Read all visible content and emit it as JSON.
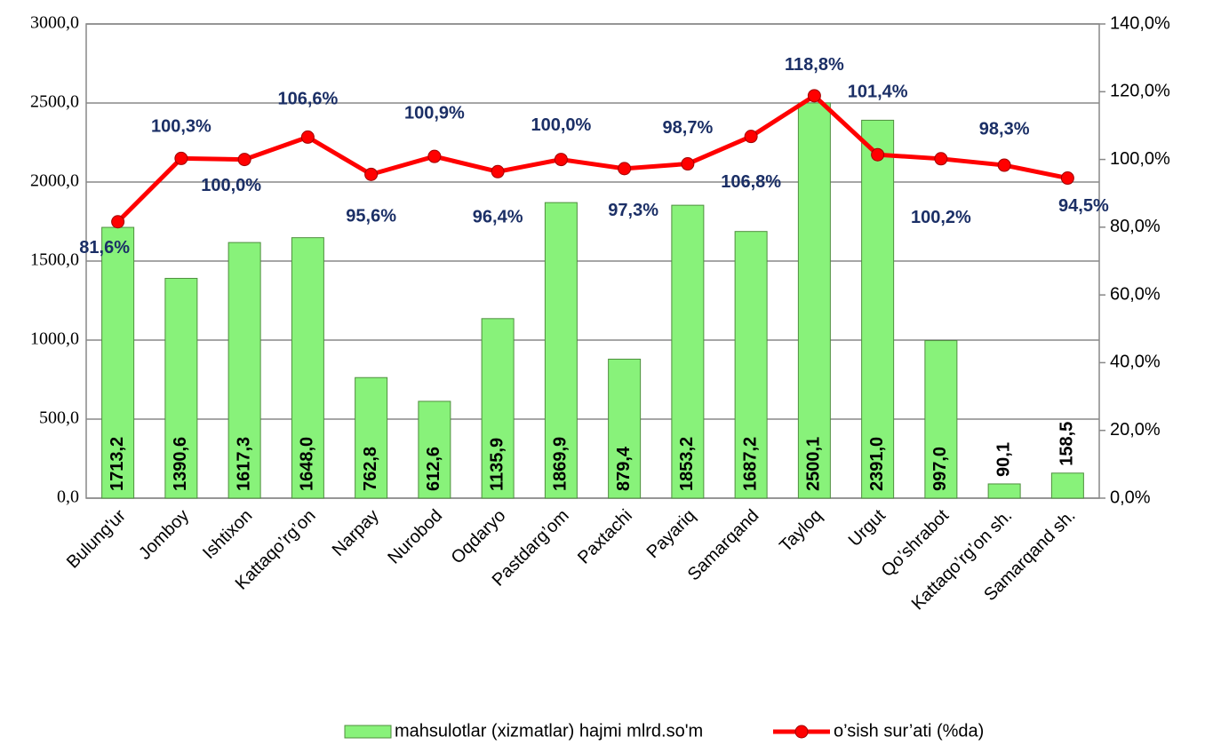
{
  "chart_data": {
    "type": "bar_line",
    "categories": [
      "Bulung'ur",
      "Jomboy",
      "Ishtixon",
      "Kattaqo’rg’on",
      "Narpay",
      "Nurobod",
      "Oqdaryo",
      "Pastdarg’om",
      "Paxtachi",
      "Payariq",
      "Samarqand",
      "Tayloq",
      "Urgut",
      "Qo’shrabot",
      "Kattaqo’rg’on sh.",
      "Samarqand sh."
    ],
    "series": [
      {
        "name": "mahsulotlar (xizmatlar) hajmi mlrd.so'm",
        "type": "bar",
        "color": "#88f27a",
        "values": [
          1713.2,
          1390.6,
          1617.3,
          1648.0,
          762.8,
          612.6,
          1135.9,
          1869.9,
          879.4,
          1853.2,
          1687.2,
          2500.1,
          2391.0,
          997.0,
          90.1,
          158.5
        ],
        "value_labels": [
          "1713,2",
          "1390,6",
          "1617,3",
          "1648,0",
          "762,8",
          "612,6",
          "1135,9",
          "1869,9",
          "879,4",
          "1853,2",
          "1687,2",
          "2500,1",
          "2391,0",
          "997,0",
          "90,1",
          "158,5"
        ]
      },
      {
        "name": "o’sish sur’ati (%da)",
        "type": "line",
        "axis": "y2",
        "color": "#ff0000",
        "values": [
          81.6,
          100.3,
          100.0,
          106.6,
          95.6,
          100.9,
          96.4,
          100.0,
          97.3,
          98.7,
          106.8,
          118.8,
          101.4,
          100.2,
          98.3,
          94.5
        ],
        "value_labels": [
          "81,6%",
          "100,3%",
          "100,0%",
          "106,6%",
          "95,6%",
          "100,9%",
          "96,4%",
          "100,0%",
          "97,3%",
          "98,7%",
          "106,8%",
          "118,8%",
          "101,4%",
          "100,2%",
          "98,3%",
          "94,5%"
        ]
      }
    ],
    "ylim": [
      0,
      3000
    ],
    "yticks": [
      {
        "value": 0,
        "label": "0,0"
      },
      {
        "value": 500,
        "label": "500,0"
      },
      {
        "value": 1000,
        "label": "1000,0"
      },
      {
        "value": 1500,
        "label": "1500,0"
      },
      {
        "value": 2000,
        "label": "2000,0"
      },
      {
        "value": 2500,
        "label": "2500,0"
      },
      {
        "value": 3000,
        "label": "3000,0"
      }
    ],
    "y2lim": [
      0,
      140
    ],
    "y2ticks": [
      {
        "value": 0,
        "label": "0,0%"
      },
      {
        "value": 20,
        "label": "20,0%"
      },
      {
        "value": 40,
        "label": "40,0%"
      },
      {
        "value": 60,
        "label": "60,0%"
      },
      {
        "value": 80,
        "label": "80,0%"
      },
      {
        "value": 100,
        "label": "100,0%"
      },
      {
        "value": 120,
        "label": "120,0%"
      },
      {
        "value": 140,
        "label": "140,0%"
      }
    ],
    "grid": true,
    "legend": "bottom"
  }
}
